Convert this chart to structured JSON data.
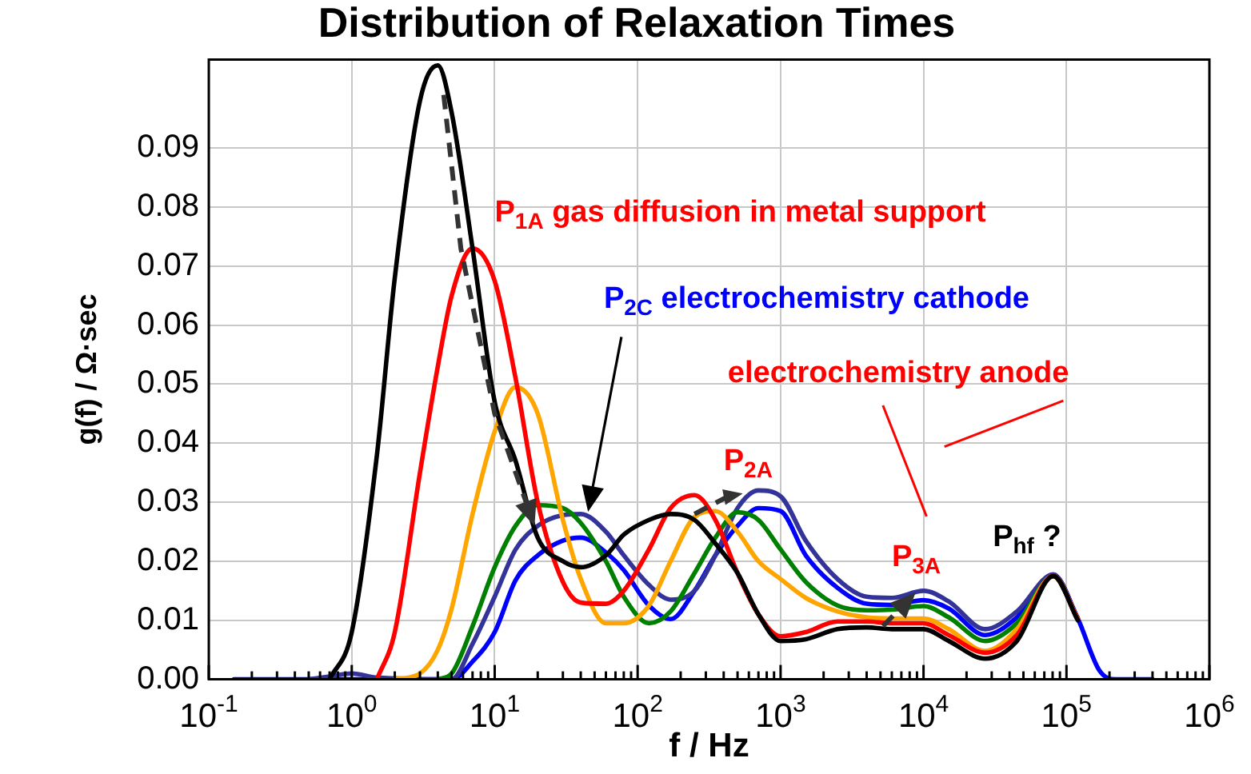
{
  "chart_data": {
    "type": "line",
    "title": "Distribution of Relaxation Times",
    "xlabel": "f / Hz",
    "ylabel": "g(f) / Ω·sec",
    "log": "x",
    "grid": true,
    "legend": false,
    "marker": "none",
    "line_style": "solid",
    "xlim": [
      0.1,
      1000000
    ],
    "ylim": [
      0,
      0.105
    ],
    "xticks": [
      {
        "value": 0.1,
        "label": "10$^{-1}$"
      },
      {
        "value": 0.2,
        "label": null
      },
      {
        "value": 0.3,
        "label": null
      },
      {
        "value": 0.4,
        "label": null
      },
      {
        "value": 0.5,
        "label": null
      },
      {
        "value": 0.6,
        "label": null
      },
      {
        "value": 0.7,
        "label": null
      },
      {
        "value": 0.8,
        "label": null
      },
      {
        "value": 0.9,
        "label": null
      },
      {
        "value": 1,
        "label": "10$^{0}$"
      },
      {
        "value": 2,
        "label": null
      },
      {
        "value": 3,
        "label": null
      },
      {
        "value": 4,
        "label": null
      },
      {
        "value": 5,
        "label": null
      },
      {
        "value": 6,
        "label": null
      },
      {
        "value": 7,
        "label": null
      },
      {
        "value": 8,
        "label": null
      },
      {
        "value": 9,
        "label": null
      },
      {
        "value": 10,
        "label": "10$^{1}$"
      },
      {
        "value": 20,
        "label": null
      },
      {
        "value": 30,
        "label": null
      },
      {
        "value": 40,
        "label": null
      },
      {
        "value": 50,
        "label": null
      },
      {
        "value": 60,
        "label": null
      },
      {
        "value": 70,
        "label": null
      },
      {
        "value": 80,
        "label": null
      },
      {
        "value": 90,
        "label": null
      },
      {
        "value": 100,
        "label": "10$^{2}$"
      },
      {
        "value": 200,
        "label": null
      },
      {
        "value": 300,
        "label": null
      },
      {
        "value": 400,
        "label": null
      },
      {
        "value": 500,
        "label": null
      },
      {
        "value": 600,
        "label": null
      },
      {
        "value": 700,
        "label": null
      },
      {
        "value": 800,
        "label": null
      },
      {
        "value": 900,
        "label": null
      },
      {
        "value": 1000,
        "label": "10$^{3}$"
      },
      {
        "value": 2000,
        "label": null
      },
      {
        "value": 3000,
        "label": null
      },
      {
        "value": 4000,
        "label": null
      },
      {
        "value": 5000,
        "label": null
      },
      {
        "value": 6000,
        "label": null
      },
      {
        "value": 7000,
        "label": null
      },
      {
        "value": 8000,
        "label": null
      },
      {
        "value": 9000,
        "label": null
      },
      {
        "value": 10000,
        "label": "10$^{4}$"
      },
      {
        "value": 20000,
        "label": null
      },
      {
        "value": 30000,
        "label": null
      },
      {
        "value": 40000,
        "label": null
      },
      {
        "value": 50000,
        "label": null
      },
      {
        "value": 60000,
        "label": null
      },
      {
        "value": 70000,
        "label": null
      },
      {
        "value": 80000,
        "label": null
      },
      {
        "value": 90000,
        "label": null
      },
      {
        "value": 100000,
        "label": "10$^{5}$"
      },
      {
        "value": 200000,
        "label": null
      },
      {
        "value": 300000,
        "label": null
      },
      {
        "value": 400000,
        "label": null
      },
      {
        "value": 500000,
        "label": null
      },
      {
        "value": 600000,
        "label": null
      },
      {
        "value": 700000,
        "label": null
      },
      {
        "value": 800000,
        "label": null
      },
      {
        "value": 900000,
        "label": null
      },
      {
        "value": 1000000,
        "label": "10$^{6}$"
      }
    ],
    "yticks": [
      {
        "value": 0,
        "label": "0.00"
      },
      {
        "value": 0.01,
        "label": "0.01"
      },
      {
        "value": 0.02,
        "label": "0.02"
      },
      {
        "value": 0.03,
        "label": "0.03"
      },
      {
        "value": 0.04,
        "label": "0.04"
      },
      {
        "value": 0.05,
        "label": "0.05"
      },
      {
        "value": 0.06,
        "label": "0.06"
      },
      {
        "value": 0.07,
        "label": "0.07"
      },
      {
        "value": 0.08,
        "label": "0.08"
      },
      {
        "value": 0.09,
        "label": "0.09"
      }
    ],
    "x": [
      0.15,
      0.5,
      0.7,
      1,
      1.5,
      2,
      3,
      4,
      5,
      7,
      10,
      14,
      20,
      30,
      40,
      60,
      80,
      120,
      170,
      250,
      350,
      500,
      700,
      1000,
      1500,
      2500,
      4000,
      6000,
      10000,
      15000,
      27000,
      45000,
      81000,
      120000,
      170000,
      220000,
      400000
    ],
    "series": [
      {
        "color": "#000000",
        "values": [
          null,
          null,
          0,
          0.008,
          0.038,
          0.068,
          0.098,
          0.104,
          0.096,
          0.073,
          0.047,
          0.037,
          0.024,
          0.02,
          0.019,
          0.021,
          0.0245,
          0.027,
          0.028,
          0.027,
          0.023,
          0.018,
          0.011,
          0.0065,
          0.0068,
          0.0085,
          0.0088,
          0.0085,
          0.0085,
          0.0065,
          0.0035,
          0.0065,
          0.0175,
          0.01,
          null,
          null,
          null
        ]
      },
      {
        "color": "#ff0000",
        "values": [
          null,
          null,
          null,
          null,
          0,
          0.008,
          0.035,
          0.053,
          0.065,
          0.073,
          0.0675,
          0.051,
          0.03,
          0.0165,
          0.013,
          0.0128,
          0.015,
          0.022,
          0.029,
          0.0312,
          0.027,
          0.018,
          0.011,
          0.0073,
          0.008,
          0.0098,
          0.0098,
          0.0095,
          0.0095,
          0.0075,
          0.0045,
          0.0075,
          0.0175,
          0.0102,
          null,
          null,
          null
        ]
      },
      {
        "color": "#ffa500",
        "values": [
          null,
          null,
          null,
          null,
          null,
          0,
          0.001,
          0.005,
          0.012,
          0.028,
          0.042,
          0.0495,
          0.045,
          0.027,
          0.017,
          0.0095,
          0.0095,
          0.0125,
          0.02,
          0.0275,
          0.0285,
          0.025,
          0.02,
          0.017,
          0.0138,
          0.0115,
          0.0105,
          0.0103,
          0.0103,
          0.0085,
          0.0048,
          0.0085,
          0.0175,
          0.0102,
          null,
          null,
          null
        ]
      },
      {
        "color": "#008000",
        "values": [
          null,
          null,
          null,
          null,
          null,
          null,
          null,
          0,
          0.001,
          0.009,
          0.019,
          0.026,
          0.0295,
          0.029,
          0.0265,
          0.02,
          0.014,
          0.0095,
          0.0115,
          0.018,
          0.024,
          0.0283,
          0.027,
          0.022,
          0.0165,
          0.0125,
          0.0117,
          0.0118,
          0.0124,
          0.0105,
          0.0065,
          0.0095,
          0.0175,
          0.0102,
          null,
          null,
          null
        ]
      },
      {
        "color": "#333399",
        "values": [
          null,
          0,
          0.0005,
          0.001,
          0.0003,
          null,
          null,
          null,
          0,
          0.006,
          0.014,
          0.022,
          0.026,
          0.0278,
          0.028,
          0.025,
          0.021,
          0.016,
          0.0135,
          0.015,
          0.021,
          0.029,
          0.032,
          0.031,
          0.0235,
          0.017,
          0.014,
          0.0138,
          0.015,
          0.0132,
          0.0085,
          0.0115,
          0.0178,
          0.0104,
          null,
          null,
          null
        ]
      },
      {
        "color": "#0000ff",
        "values": [
          0,
          0,
          0,
          0,
          0,
          0,
          0,
          0,
          0,
          0.003,
          0.008,
          0.0168,
          0.021,
          0.0235,
          0.024,
          0.0215,
          0.0185,
          0.0125,
          0.0102,
          0.015,
          0.021,
          0.026,
          0.029,
          0.0285,
          0.021,
          0.0155,
          0.0128,
          0.0126,
          0.0134,
          0.012,
          0.0075,
          0.0105,
          0.0177,
          0.0103,
          0.0015,
          0,
          0
        ]
      }
    ],
    "annotations": [
      "P$_{1A}$ gas diffusion in metal support",
      "P$_{2C}$ electrochemistry cathode",
      "electrochemistry anode",
      {
        "text": "P$_{2A}$",
        "x": 700,
        "y": 0.032
      },
      "P$_{3A}$",
      "P$_{hf}$ ?"
    ]
  }
}
